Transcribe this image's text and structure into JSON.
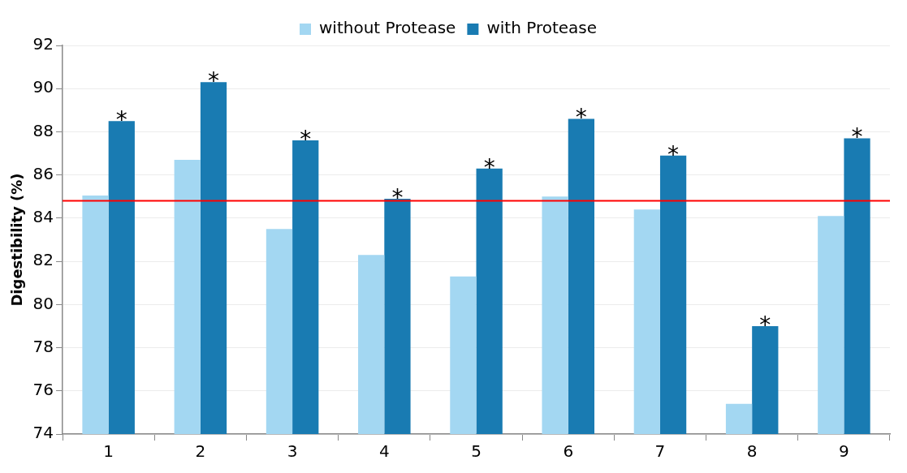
{
  "chart_data": {
    "type": "bar",
    "ylabel": "Digestibility (%)",
    "categories": [
      "1",
      "2",
      "3",
      "4",
      "5",
      "6",
      "7",
      "8",
      "9"
    ],
    "series": [
      {
        "name": "without Protease",
        "color": "#a3d7f2",
        "values": [
          85.05,
          86.7,
          83.5,
          82.3,
          81.3,
          85.0,
          84.4,
          75.4,
          84.1
        ]
      },
      {
        "name": "with Protease",
        "color": "#197bb2",
        "values": [
          88.5,
          90.3,
          87.6,
          84.9,
          86.3,
          88.6,
          86.9,
          79.0,
          87.7
        ]
      }
    ],
    "ylim": [
      74,
      92
    ],
    "yticks": [
      74,
      76,
      78,
      80,
      82,
      84,
      86,
      88,
      90,
      92
    ],
    "grid": "y",
    "legend": "top",
    "ref_lines": [
      {
        "axis": "y",
        "value": 84.8,
        "color": "#ff0000"
      }
    ],
    "annotations": [
      "*",
      "*",
      "*",
      "*",
      "*",
      "*",
      "*",
      "*",
      "*"
    ]
  }
}
